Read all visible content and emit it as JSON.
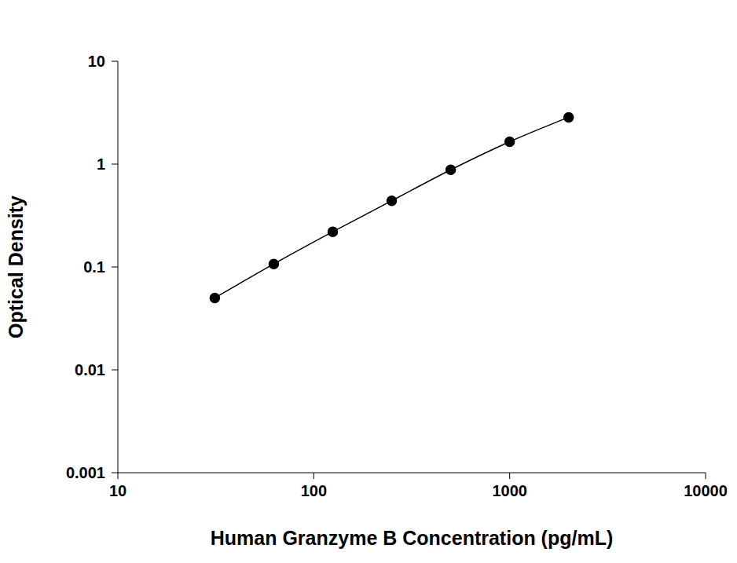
{
  "chart_data": {
    "type": "line",
    "x_label": "Human Granzyme B Concentration (pg/mL)",
    "y_label": "Optical Density",
    "x": [
      31.25,
      62.5,
      125,
      250,
      500,
      1000,
      2000
    ],
    "series": [
      {
        "name": "Human Granzyme B",
        "color": "#000000",
        "values": [
          0.05,
          0.107,
          0.22,
          0.44,
          0.88,
          1.65,
          2.85
        ],
        "marker": "circle",
        "line_style": "solid"
      }
    ],
    "xlim": [
      10,
      10000
    ],
    "xticks": [
      10,
      100,
      1000,
      10000
    ],
    "ylim": [
      0.001,
      10
    ],
    "yticks": [
      0.001,
      0.01,
      0.1,
      1,
      10
    ],
    "log": true,
    "grid": false
  }
}
